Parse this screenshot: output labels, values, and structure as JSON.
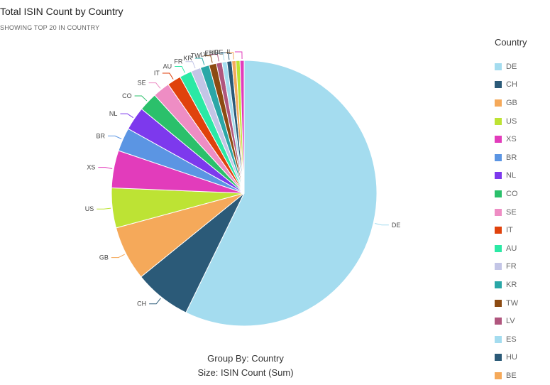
{
  "header": {
    "title": "Total ISIN Count by Country",
    "subtitle": "SHOWING TOP 20 IN COUNTRY"
  },
  "caption": {
    "group_by": "Group By: Country",
    "size": "Size: ISIN Count (Sum)"
  },
  "legend": {
    "title": "Country",
    "items": [
      {
        "label": "DE",
        "color": "#a4dcef"
      },
      {
        "label": "CH",
        "color": "#2b5a78"
      },
      {
        "label": "GB",
        "color": "#f5a95a"
      },
      {
        "label": "US",
        "color": "#bde334"
      },
      {
        "label": "XS",
        "color": "#e23cbb"
      },
      {
        "label": "BR",
        "color": "#5b95e3"
      },
      {
        "label": "NL",
        "color": "#7d39ed"
      },
      {
        "label": "CO",
        "color": "#2bc06b"
      },
      {
        "label": "SE",
        "color": "#ee8dc4"
      },
      {
        "label": "IT",
        "color": "#e0420c"
      },
      {
        "label": "AU",
        "color": "#2be9a5"
      },
      {
        "label": "FR",
        "color": "#c3c5e6"
      },
      {
        "label": "KR",
        "color": "#2aa7a7"
      },
      {
        "label": "TW",
        "color": "#8c4b12"
      },
      {
        "label": "LV",
        "color": "#b0567e"
      },
      {
        "label": "ES",
        "color": "#a4dcef"
      },
      {
        "label": "HU",
        "color": "#2b5a78"
      },
      {
        "label": "BE",
        "color": "#f5a95a"
      }
    ]
  },
  "chart_data": {
    "type": "pie",
    "title": "Total ISIN Count by Country",
    "subtitle": "SHOWING TOP 20 IN COUNTRY",
    "legend_position": "right",
    "slices": [
      {
        "label": "DE",
        "value": 57.8,
        "color": "#a4dcef"
      },
      {
        "label": "CH",
        "value": 7.0,
        "color": "#2b5a78"
      },
      {
        "label": "GB",
        "value": 6.7,
        "color": "#f5a95a"
      },
      {
        "label": "US",
        "value": 4.9,
        "color": "#bde334"
      },
      {
        "label": "XS",
        "value": 4.6,
        "color": "#e23cbb"
      },
      {
        "label": "BR",
        "value": 2.9,
        "color": "#5b95e3"
      },
      {
        "label": "NL",
        "value": 2.9,
        "color": "#7d39ed"
      },
      {
        "label": "CO",
        "value": 2.3,
        "color": "#2bc06b"
      },
      {
        "label": "SE",
        "value": 2.1,
        "color": "#ee8dc4"
      },
      {
        "label": "IT",
        "value": 1.7,
        "color": "#e0420c"
      },
      {
        "label": "AU",
        "value": 1.5,
        "color": "#2be9a5"
      },
      {
        "label": "FR",
        "value": 1.2,
        "color": "#c3c5e6"
      },
      {
        "label": "KR",
        "value": 1.1,
        "color": "#2aa7a7"
      },
      {
        "label": "TW",
        "value": 0.9,
        "color": "#8c4b12"
      },
      {
        "label": "LV",
        "value": 0.7,
        "color": "#b0567e"
      },
      {
        "label": "ES",
        "value": 0.6,
        "color": "#a4dcef"
      },
      {
        "label": "HU",
        "value": 0.6,
        "color": "#2b5a78"
      },
      {
        "label": "BE",
        "value": 0.5,
        "color": "#f5a95a"
      },
      {
        "label": "",
        "value": 0.5,
        "color": "#bde334"
      },
      {
        "label": "IL",
        "value": 0.5,
        "color": "#e23cbb"
      }
    ]
  }
}
